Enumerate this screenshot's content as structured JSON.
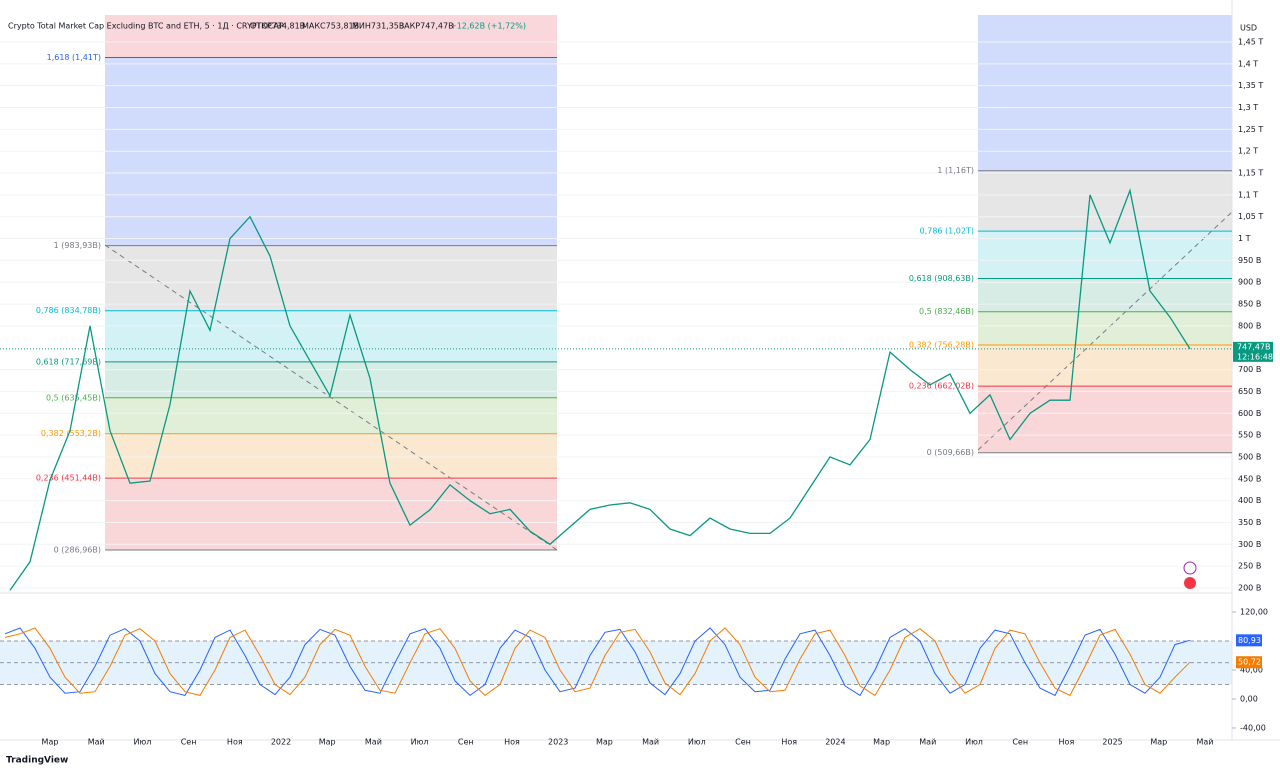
{
  "header": {
    "title": "Crypto Total Market Cap Excluding BTC and ETH, 5 · 1Д · CRYPTOCAP",
    "ohlc": [
      "ОТКР734,81B",
      "МАКС753,81B",
      "МИН731,35B",
      "ЗАКР747,47B",
      "+12,62B (+1,72%)"
    ],
    "currency": "USD",
    "countdown": "12:16:48",
    "brand": "TradingView"
  },
  "chart_data": [
    {
      "type": "line",
      "color": "#089981",
      "values": [
        195,
        260,
        447,
        560,
        800,
        560,
        440,
        445,
        620,
        880,
        790,
        1000,
        1050,
        960,
        800,
        720,
        640,
        825,
        680,
        440,
        344,
        379,
        436,
        400,
        370,
        380,
        330,
        300,
        340,
        380,
        390,
        395,
        380,
        335,
        320,
        360,
        335,
        325,
        325,
        360,
        430,
        500,
        482,
        540,
        740,
        700,
        665,
        690,
        600,
        642,
        540,
        600,
        630,
        630,
        1100,
        990,
        1110,
        880,
        820,
        747.47
      ],
      "last_value": 747.47,
      "last_label": "747,47B",
      "last_color": "#089981",
      "ylim": [
        190.8,
        1511.8
      ],
      "yticks": [
        {
          "value": 200,
          "label": "200 B"
        },
        {
          "value": 250,
          "label": "250 B"
        },
        {
          "value": 300,
          "label": "300 B"
        },
        {
          "value": 350,
          "label": "350 B"
        },
        {
          "value": 400,
          "label": "400 B"
        },
        {
          "value": 450,
          "label": "450 B"
        },
        {
          "value": 500,
          "label": "500 B"
        },
        {
          "value": 550,
          "label": "550 B"
        },
        {
          "value": 600,
          "label": "600 B"
        },
        {
          "value": 650,
          "label": "650 B"
        },
        {
          "value": 700,
          "label": "700 B"
        },
        {
          "value": 800,
          "label": "800 B"
        },
        {
          "value": 850,
          "label": "850 B"
        },
        {
          "value": 900,
          "label": "900 B"
        },
        {
          "value": 950,
          "label": "950 B"
        },
        {
          "value": 1000,
          "label": "1 T"
        },
        {
          "value": 1050,
          "label": "1,05 T"
        },
        {
          "value": 1100,
          "label": "1,1 T"
        },
        {
          "value": 1150,
          "label": "1,15 T"
        },
        {
          "value": 1200,
          "label": "1,2 T"
        },
        {
          "value": 1250,
          "label": "1,25 T"
        },
        {
          "value": 1300,
          "label": "1,3 T"
        },
        {
          "value": 1350,
          "label": "1,35 T"
        },
        {
          "value": 1400,
          "label": "1,4 T"
        },
        {
          "value": 1450,
          "label": "1,45 T"
        }
      ],
      "fib": [
        {
          "top_fill": "#f9d7da",
          "levels": [
            {
              "label": "1,618 (1,41T)",
              "price": 1414.6,
              "color": "#2962ff",
              "fill": "#d1dcfc"
            },
            {
              "label": "1 (983,93B)",
              "price": 983.93,
              "color": "#787b86",
              "fill": "#e6e6e6"
            },
            {
              "label": "0,786 (834,78B)",
              "price": 834.78,
              "color": "#00bcd4",
              "fill": "#d3f2f5"
            },
            {
              "label": "0,618 (717,69B)",
              "price": 717.69,
              "color": "#089981",
              "fill": "#d6ece4"
            },
            {
              "label": "0,5 (635,45B)",
              "price": 635.45,
              "color": "#4caf50",
              "fill": "#e2efd8"
            },
            {
              "label": "0,382 (553,2B)",
              "price": 553.2,
              "color": "#ff9800",
              "fill": "#fbe8d1"
            },
            {
              "label": "0,236 (451,44B)",
              "price": 451.44,
              "color": "#f23645",
              "fill": "#f9d6d8"
            },
            {
              "label": "0 (286,96B)",
              "price": 286.96,
              "color": "#787b86",
              "fill": "none"
            }
          ]
        },
        {
          "top_fill": "#d1dcfc",
          "levels": [
            {
              "label": "1 (1,16T)",
              "price": 1155.3,
              "color": "#787b86",
              "fill": "#e6e6e6"
            },
            {
              "label": "0,786 (1,02T)",
              "price": 1017.1,
              "color": "#00bcd4",
              "fill": "#d3f2f5"
            },
            {
              "label": "0,618 (908,63B)",
              "price": 908.63,
              "color": "#089981",
              "fill": "#d6ece4"
            },
            {
              "label": "0,5 (832,46B)",
              "price": 832.46,
              "color": "#4caf50",
              "fill": "#e2efd8"
            },
            {
              "label": "0,382 (756,28B)",
              "price": 756.28,
              "color": "#ff9800",
              "fill": "#fbe8d1"
            },
            {
              "label": "0,236 (662,02B)",
              "price": 662.02,
              "color": "#f23645",
              "fill": "#f9d6d8"
            },
            {
              "label": "0 (509,66B)",
              "price": 509.66,
              "color": "#787b86",
              "fill": "none"
            }
          ]
        }
      ]
    },
    {
      "type": "line",
      "series": [
        {
          "color": "#2962ff",
          "last_label": "80,93",
          "values": [
            90,
            98,
            70,
            30,
            8,
            10,
            45,
            88,
            97,
            80,
            35,
            10,
            5,
            40,
            85,
            95,
            60,
            20,
            6,
            30,
            75,
            96,
            88,
            45,
            12,
            8,
            50,
            90,
            97,
            70,
            25,
            5,
            20,
            70,
            95,
            85,
            40,
            10,
            15,
            60,
            92,
            96,
            65,
            22,
            6,
            35,
            80,
            98,
            75,
            30,
            10,
            12,
            55,
            90,
            95,
            60,
            18,
            5,
            40,
            85,
            97,
            80,
            35,
            8,
            20,
            70,
            95,
            90,
            50,
            15,
            5,
            45,
            88,
            96,
            62,
            20,
            8,
            30,
            75,
            80.93
          ]
        },
        {
          "color": "#f57c00",
          "last_label": "50,72",
          "values": [
            85,
            90,
            98,
            70,
            30,
            8,
            10,
            45,
            88,
            97,
            80,
            35,
            10,
            5,
            40,
            85,
            95,
            60,
            20,
            6,
            30,
            75,
            96,
            88,
            45,
            12,
            8,
            50,
            90,
            97,
            70,
            25,
            5,
            20,
            70,
            95,
            85,
            40,
            10,
            15,
            60,
            92,
            96,
            65,
            22,
            6,
            35,
            80,
            98,
            75,
            30,
            10,
            12,
            55,
            90,
            95,
            60,
            18,
            5,
            40,
            85,
            97,
            80,
            35,
            8,
            20,
            70,
            95,
            90,
            50,
            15,
            5,
            45,
            88,
            96,
            62,
            20,
            8,
            30,
            50.72
          ]
        }
      ],
      "levels": [
        80,
        50,
        20
      ],
      "ylim": [
        -56.6,
        136.6
      ],
      "yticks": [
        {
          "value": 120,
          "label": "120,00"
        },
        {
          "value": 40,
          "label": "40,00"
        },
        {
          "value": 0,
          "label": "0,00"
        },
        {
          "value": -40,
          "label": "-40,00"
        }
      ],
      "xtick_labels": [
        "Мар",
        "Май",
        "Июл",
        "Сен",
        "Ноя",
        "2022",
        "Мар",
        "Май",
        "Июл",
        "Сен",
        "Ноя",
        "2023",
        "Мар",
        "Май",
        "Июл",
        "Сен",
        "Ноя",
        "2024",
        "Мар",
        "Май",
        "Июл",
        "Сен",
        "Ноя",
        "2025",
        "Мар",
        "Май"
      ]
    }
  ]
}
